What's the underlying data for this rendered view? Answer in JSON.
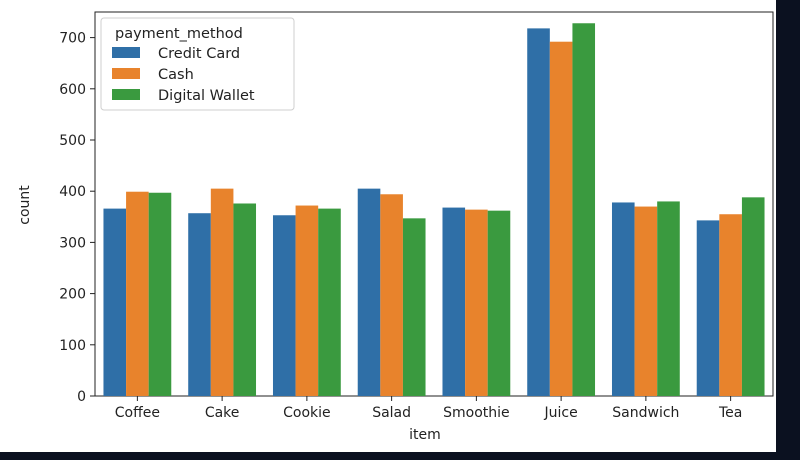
{
  "chart_data": {
    "type": "bar",
    "xlabel": "item",
    "ylabel": "count",
    "ylim": [
      0,
      750
    ],
    "yticks": [
      0,
      100,
      200,
      300,
      400,
      500,
      600,
      700
    ],
    "categories": [
      "Coffee",
      "Cake",
      "Cookie",
      "Salad",
      "Smoothie",
      "Juice",
      "Sandwich",
      "Tea"
    ],
    "legend": {
      "title": "payment_method",
      "placement": "top-left"
    },
    "grid": false,
    "series": [
      {
        "name": "Credit Card",
        "color": "#2f6fa7",
        "values": [
          366,
          357,
          353,
          405,
          368,
          718,
          378,
          343
        ]
      },
      {
        "name": "Cash",
        "color": "#e8832c",
        "values": [
          399,
          405,
          372,
          394,
          364,
          692,
          370,
          355
        ]
      },
      {
        "name": "Digital Wallet",
        "color": "#3a9a3f",
        "values": [
          397,
          376,
          366,
          347,
          362,
          728,
          380,
          388
        ]
      }
    ]
  }
}
